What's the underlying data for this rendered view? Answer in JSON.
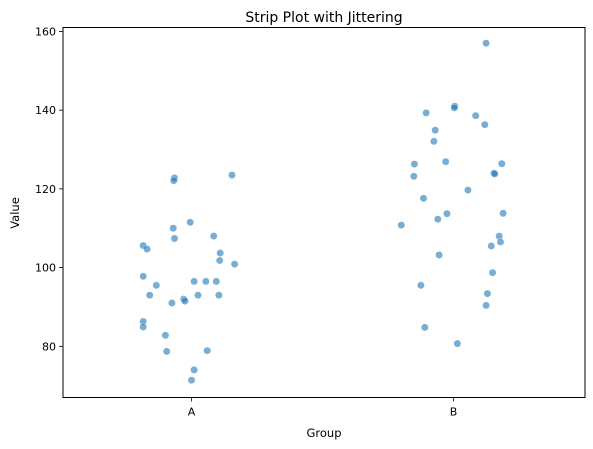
{
  "chart_data": {
    "type": "scatter",
    "subtype": "strip-jitter",
    "title": "Strip Plot with Jittering",
    "xlabel": "Group",
    "ylabel": "Value",
    "categories": [
      "A",
      "B"
    ],
    "ylim": [
      67,
      161
    ],
    "yticks": [
      80,
      100,
      120,
      140,
      160
    ],
    "grid": false,
    "point_color": "#1f77b4",
    "point_opacity": 0.6,
    "series": [
      {
        "category": "A",
        "points": [
          {
            "jitter": -0.185,
            "y": 105.6
          },
          {
            "jitter": -0.17,
            "y": 104.7
          },
          {
            "jitter": -0.16,
            "y": 93.0
          },
          {
            "jitter": -0.185,
            "y": 97.8
          },
          {
            "jitter": -0.135,
            "y": 95.5
          },
          {
            "jitter": -0.185,
            "y": 86.3
          },
          {
            "jitter": -0.185,
            "y": 84.9
          },
          {
            "jitter": -0.1,
            "y": 82.8
          },
          {
            "jitter": -0.095,
            "y": 78.7
          },
          {
            "jitter": -0.075,
            "y": 91.0
          },
          {
            "jitter": -0.07,
            "y": 110.0
          },
          {
            "jitter": -0.065,
            "y": 107.4
          },
          {
            "jitter": -0.065,
            "y": 122.8
          },
          {
            "jitter": -0.068,
            "y": 122.1
          },
          {
            "jitter": -0.03,
            "y": 92.0
          },
          {
            "jitter": -0.025,
            "y": 91.5
          },
          {
            "jitter": -0.005,
            "y": 111.5
          },
          {
            "jitter": 0.01,
            "y": 96.5
          },
          {
            "jitter": 0.025,
            "y": 93.0
          },
          {
            "jitter": 0.055,
            "y": 96.5
          },
          {
            "jitter": 0.06,
            "y": 78.9
          },
          {
            "jitter": 0.0,
            "y": 71.4
          },
          {
            "jitter": 0.01,
            "y": 74.0
          },
          {
            "jitter": 0.085,
            "y": 108.0
          },
          {
            "jitter": 0.095,
            "y": 96.5
          },
          {
            "jitter": 0.11,
            "y": 103.7
          },
          {
            "jitter": 0.108,
            "y": 101.8
          },
          {
            "jitter": 0.105,
            "y": 93.0
          },
          {
            "jitter": 0.155,
            "y": 123.5
          },
          {
            "jitter": 0.165,
            "y": 100.9
          }
        ]
      },
      {
        "category": "B",
        "points": [
          {
            "jitter": -0.2,
            "y": 110.8
          },
          {
            "jitter": -0.15,
            "y": 126.3
          },
          {
            "jitter": -0.152,
            "y": 123.2
          },
          {
            "jitter": -0.115,
            "y": 117.6
          },
          {
            "jitter": -0.105,
            "y": 139.3
          },
          {
            "jitter": -0.07,
            "y": 134.9
          },
          {
            "jitter": -0.075,
            "y": 132.1
          },
          {
            "jitter": -0.06,
            "y": 112.3
          },
          {
            "jitter": -0.055,
            "y": 103.2
          },
          {
            "jitter": -0.125,
            "y": 95.5
          },
          {
            "jitter": -0.11,
            "y": 84.8
          },
          {
            "jitter": -0.03,
            "y": 126.9
          },
          {
            "jitter": -0.025,
            "y": 113.7
          },
          {
            "jitter": 0.005,
            "y": 141.0
          },
          {
            "jitter": 0.003,
            "y": 140.6
          },
          {
            "jitter": 0.015,
            "y": 80.7
          },
          {
            "jitter": 0.055,
            "y": 119.7
          },
          {
            "jitter": 0.085,
            "y": 138.6
          },
          {
            "jitter": 0.125,
            "y": 157.0
          },
          {
            "jitter": 0.12,
            "y": 136.3
          },
          {
            "jitter": 0.155,
            "y": 124.0
          },
          {
            "jitter": 0.158,
            "y": 123.8
          },
          {
            "jitter": 0.145,
            "y": 105.5
          },
          {
            "jitter": 0.15,
            "y": 98.7
          },
          {
            "jitter": 0.13,
            "y": 93.4
          },
          {
            "jitter": 0.125,
            "y": 90.4
          },
          {
            "jitter": 0.175,
            "y": 108.0
          },
          {
            "jitter": 0.18,
            "y": 106.5
          },
          {
            "jitter": 0.185,
            "y": 126.4
          },
          {
            "jitter": 0.19,
            "y": 113.8
          }
        ]
      }
    ]
  }
}
